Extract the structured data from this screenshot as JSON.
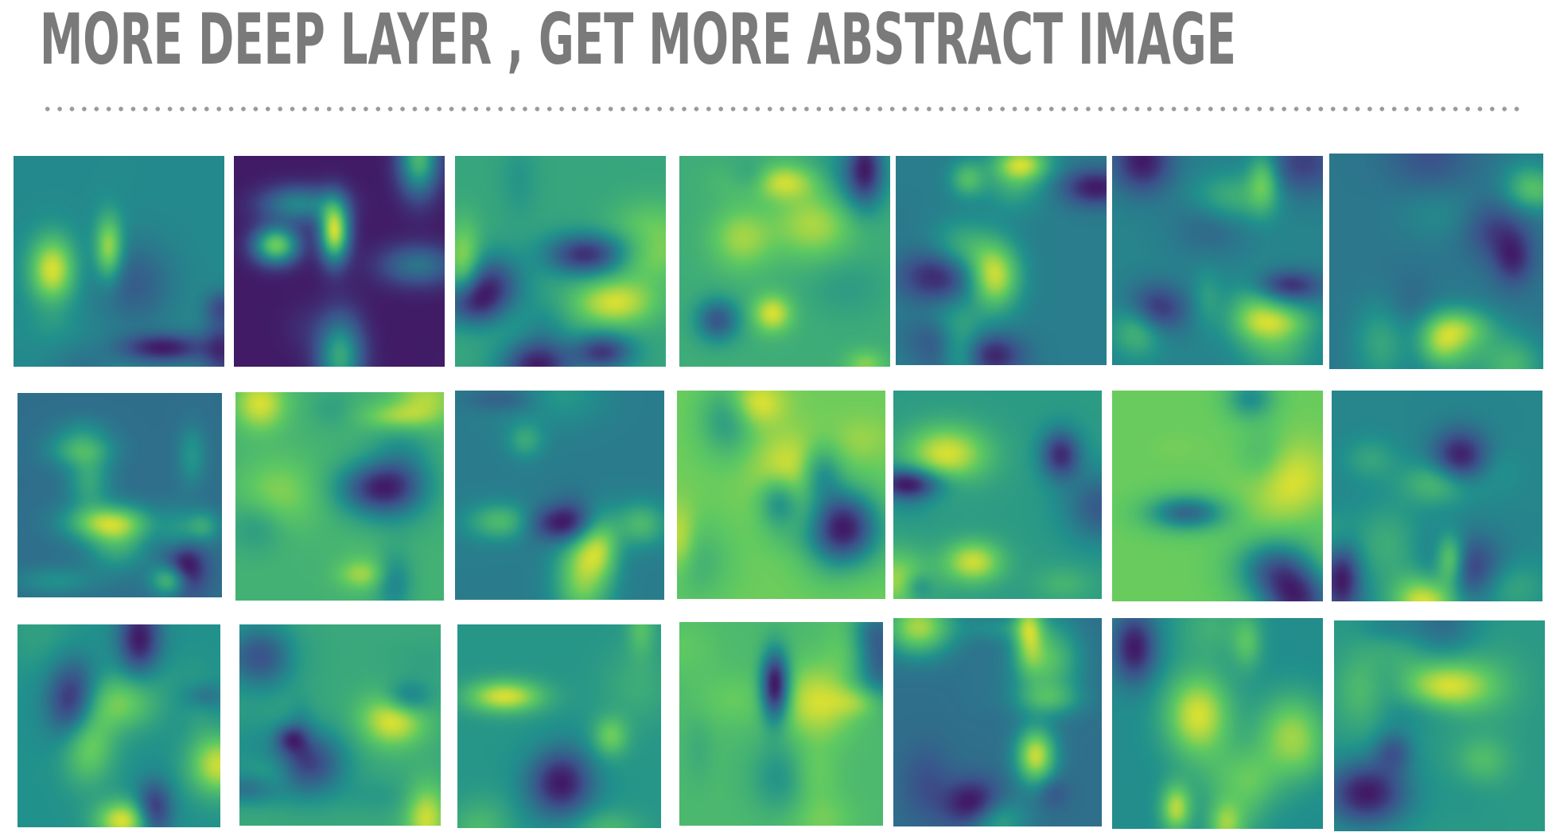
{
  "slide": {
    "title": "MORE DEEP LAYER , GET MORE ABSTRACT IMAGE"
  },
  "feature_maps": {
    "rows": 3,
    "cols": 7,
    "colormap": [
      "#440154",
      "#3b528b",
      "#21918c",
      "#5ec962",
      "#fde725"
    ]
  }
}
